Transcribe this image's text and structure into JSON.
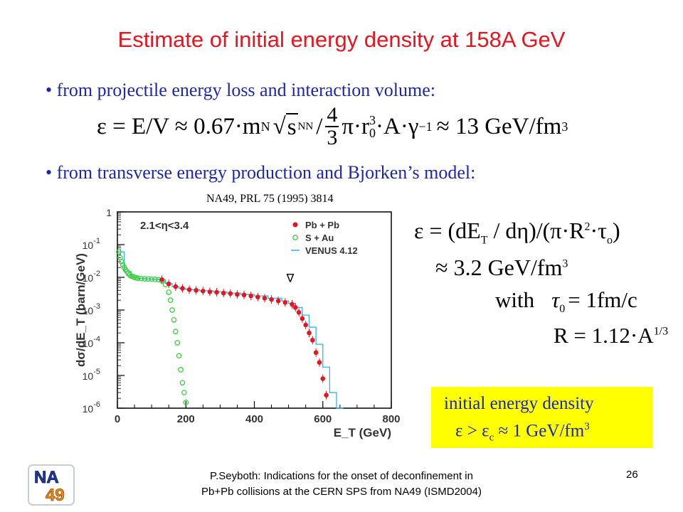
{
  "title": "Estimate of initial energy density at 158A GeV",
  "bullets": [
    "from projectile energy loss and interaction volume:",
    "from transverse energy production and Bjorken’s model:"
  ],
  "equation1": {
    "lhs": "ε = E/V ≈ 0.67·m",
    "sub_n": "N",
    "sqrt_s": "s",
    "sub_nn": "NN",
    "slash": "/",
    "frac_num": "4",
    "frac_den": "3",
    "rest": "π·r",
    "r_sup": "3",
    "r_sub": "0",
    "tail": "·A·γ",
    "gamma_sup": "−1",
    "result": "≈ 13 GeV/fm",
    "result_sup": "3"
  },
  "citation": "NA49, PRL 75 (1995) 3814",
  "chart_data": {
    "type": "scatter",
    "annotation": "2.1<η<3.4",
    "ylabel": "dσ/dE_T (barn/GeV)",
    "xlabel": "E_T (GeV)",
    "xlim": [
      0,
      800
    ],
    "ylim_log": [
      1e-06,
      1
    ],
    "x_ticks": [
      "0",
      "200",
      "400",
      "600",
      "800"
    ],
    "y_ticks": [
      "1",
      "10-1",
      "10-2",
      "10-3",
      "10-4",
      "10-5",
      "10-6"
    ],
    "legend_placement": "top-right",
    "legend": [
      "Pb + Pb",
      "S + Au",
      "VENUS 4.12"
    ],
    "series": [
      {
        "name": "Pb + Pb",
        "color": "#e8141e",
        "marker": "filled-circle",
        "x": [
          130,
          150,
          170,
          190,
          210,
          230,
          250,
          270,
          290,
          310,
          330,
          350,
          370,
          390,
          410,
          430,
          450,
          470,
          490,
          510,
          520,
          530,
          540,
          550,
          560,
          570,
          580,
          590,
          600,
          610
        ],
        "y": [
          0.0085,
          0.0063,
          0.0052,
          0.0046,
          0.0042,
          0.004,
          0.0038,
          0.0036,
          0.0035,
          0.0033,
          0.0032,
          0.003,
          0.0029,
          0.0027,
          0.0025,
          0.0023,
          0.0021,
          0.0019,
          0.0017,
          0.0015,
          0.0012,
          0.00085,
          0.00055,
          0.00035,
          0.0002,
          0.00012,
          5e-05,
          2.5e-05,
          8e-06,
          2.5e-06
        ]
      },
      {
        "name": "S + Au",
        "color": "#3cd23c",
        "marker": "open-circle",
        "x": [
          4,
          8,
          12,
          16,
          20,
          24,
          28,
          32,
          36,
          40,
          45,
          50,
          55,
          60,
          70,
          80,
          90,
          100,
          110,
          120,
          130,
          140,
          150,
          155,
          160,
          165,
          170,
          175,
          180,
          185,
          190,
          195,
          200
        ],
        "y": [
          0.06,
          0.04,
          0.03,
          0.024,
          0.02,
          0.017,
          0.015,
          0.013,
          0.012,
          0.011,
          0.0105,
          0.01,
          0.0097,
          0.0094,
          0.0092,
          0.009,
          0.0089,
          0.0088,
          0.0087,
          0.0085,
          0.0078,
          0.006,
          0.0035,
          0.002,
          0.001,
          0.0005,
          0.00022,
          0.0001,
          4e-05,
          1.5e-05,
          6e-06,
          3e-06,
          1.5e-06
        ]
      },
      {
        "name": "VENUS 4.12",
        "color": "#29b6f6",
        "marker": "histogram",
        "x": [
          0,
          20,
          40,
          60,
          80,
          100,
          120,
          140,
          160,
          180,
          200,
          240,
          280,
          320,
          360,
          400,
          440,
          480,
          500,
          520,
          540,
          560,
          580,
          600,
          620,
          640
        ],
        "y": [
          0.06,
          0.015,
          0.01,
          0.0092,
          0.009,
          0.0088,
          0.0085,
          0.0065,
          0.0052,
          0.0046,
          0.0042,
          0.0039,
          0.0036,
          0.0033,
          0.003,
          0.0027,
          0.0023,
          0.0019,
          0.0016,
          0.0012,
          0.0007,
          0.0003,
          9e-05,
          1.8e-05,
          3e-06,
          1e-06
        ]
      }
    ],
    "marker_symbol": "∇"
  },
  "equation2": {
    "line1_lhs": "ε = (dE",
    "line1_sub_t": "T",
    "line1_mid": " / dη)/(π·R",
    "line1_sup2": "2",
    "line1_end": "·τ",
    "line1_sub_o": "o",
    "line1_close": ")",
    "line2": "≈ 3.2 GeV/fm",
    "line2_sup": "3",
    "with": "with",
    "tau_eq": "τ",
    "tau_sub": "0",
    "tau_rhs": "= 1fm/c",
    "r_eq": "R = 1.12·A",
    "r_sup": "1/3"
  },
  "yellow_box": {
    "line1": "initial energy density",
    "line2_a": "ε > ε",
    "line2_sub": "c",
    "line2_b": " ≈ 1 GeV/fm",
    "line2_sup": "3"
  },
  "logo": {
    "text_top": "NA",
    "text_bottom": "49"
  },
  "footer": {
    "line1": "P.Seyboth: Indications for the onset of deconfinement in",
    "line2": "Pb+Pb collisions at the CERN SPS from NA49   (ISMD2004)"
  },
  "page_number": "26",
  "colors": {
    "title": "#e8141e",
    "bullet": "#1c26b4",
    "highlight": "#ffff00"
  }
}
